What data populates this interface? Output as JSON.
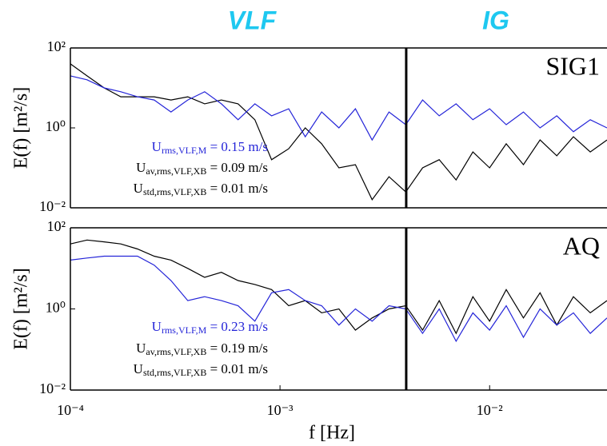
{
  "chart_data": [
    {
      "type": "line",
      "xscale": "log",
      "yscale": "log",
      "band_labels": [
        "VLF",
        "IG"
      ],
      "panel_label": "SIG1",
      "ylabel": "E(f) [m²/s]",
      "vline": 0.004,
      "xlim": [
        0.0001,
        0.0363
      ],
      "ylim": [
        0.01,
        100
      ],
      "yticks": [
        {
          "value": 0.01,
          "label": "10⁻²"
        },
        {
          "value": 1,
          "label": "10⁰"
        },
        {
          "value": 100,
          "label": "10²"
        }
      ],
      "annotations": [
        {
          "base": "U",
          "sub": "rms,VLF,M",
          "text": " = 0.15 m/s",
          "color": "#2424d8"
        },
        {
          "base": "U",
          "sub": "av,rms,VLF,XB",
          "text": " = 0.09 m/s",
          "color": "#000000"
        },
        {
          "base": "U",
          "sub": "std,rms,VLF,XB",
          "text": " = 0.01 m/s",
          "color": "#000000"
        }
      ],
      "x": [
        0.0001,
        0.00012,
        0.000145,
        0.000174,
        0.000209,
        0.000251,
        0.000302,
        0.000363,
        0.000437,
        0.000525,
        0.000631,
        0.000759,
        0.000912,
        0.0011,
        0.00132,
        0.00158,
        0.00191,
        0.00229,
        0.00275,
        0.00331,
        0.00398,
        0.00479,
        0.00575,
        0.00692,
        0.00832,
        0.01,
        0.012,
        0.0145,
        0.0174,
        0.0209,
        0.0251,
        0.0302,
        0.0363
      ],
      "series": [
        {
          "color": "#000000",
          "values": [
            40,
            20,
            10,
            6,
            6,
            6,
            5,
            6,
            4,
            5,
            4,
            1.6,
            0.16,
            0.3,
            1,
            0.4,
            0.1,
            0.12,
            0.016,
            0.06,
            0.025,
            0.1,
            0.16,
            0.05,
            0.25,
            0.1,
            0.4,
            0.12,
            0.5,
            0.2,
            0.6,
            0.25,
            0.5
          ]
        },
        {
          "color": "#2424d8",
          "values": [
            20,
            16,
            10,
            8,
            6,
            5,
            2.5,
            5,
            8,
            4,
            1.6,
            4,
            2,
            3,
            0.6,
            2.5,
            1,
            3,
            0.5,
            2.5,
            1.2,
            5,
            2,
            4,
            1.6,
            3,
            1.2,
            2.5,
            1,
            2,
            0.8,
            1.6,
            1
          ]
        }
      ]
    },
    {
      "type": "line",
      "xscale": "log",
      "yscale": "log",
      "panel_label": "AQ",
      "ylabel": "E(f) [m²/s]",
      "xlabel": "f [Hz]",
      "vline": 0.004,
      "xlim": [
        0.0001,
        0.0363
      ],
      "ylim": [
        0.01,
        100
      ],
      "xticks": [
        {
          "value": 0.0001,
          "label": "10⁻⁴"
        },
        {
          "value": 0.001,
          "label": "10⁻³"
        },
        {
          "value": 0.01,
          "label": "10⁻²"
        }
      ],
      "yticks": [
        {
          "value": 0.01,
          "label": "10⁻²"
        },
        {
          "value": 1,
          "label": "10⁰"
        },
        {
          "value": 100,
          "label": "10²"
        }
      ],
      "annotations": [
        {
          "base": "U",
          "sub": "rms,VLF,M",
          "text": " = 0.23 m/s",
          "color": "#2424d8"
        },
        {
          "base": "U",
          "sub": "av,rms,VLF,XB",
          "text": " = 0.19 m/s",
          "color": "#000000"
        },
        {
          "base": "U",
          "sub": "std,rms,VLF,XB",
          "text": " = 0.01 m/s",
          "color": "#000000"
        }
      ],
      "x": [
        0.0001,
        0.00012,
        0.000145,
        0.000174,
        0.000209,
        0.000251,
        0.000302,
        0.000363,
        0.000437,
        0.000525,
        0.000631,
        0.000759,
        0.000912,
        0.0011,
        0.00132,
        0.00158,
        0.00191,
        0.00229,
        0.00275,
        0.00331,
        0.00398,
        0.00479,
        0.00575,
        0.00692,
        0.00832,
        0.01,
        0.012,
        0.0145,
        0.0174,
        0.0209,
        0.0251,
        0.0302,
        0.0363
      ],
      "series": [
        {
          "color": "#000000",
          "values": [
            40,
            50,
            45,
            40,
            30,
            20,
            16,
            10,
            6,
            8,
            5,
            4,
            3,
            1.2,
            1.6,
            0.8,
            1,
            0.3,
            0.6,
            1,
            1.2,
            0.3,
            1.6,
            0.25,
            2,
            0.5,
            3,
            0.6,
            2.5,
            0.4,
            2,
            0.8,
            1.6
          ]
        },
        {
          "color": "#2424d8",
          "values": [
            16,
            18,
            20,
            20,
            20,
            12,
            5,
            1.6,
            2,
            1.6,
            1.2,
            0.5,
            2.5,
            3,
            1.6,
            1.2,
            0.4,
            1,
            0.5,
            1.2,
            1,
            0.25,
            1,
            0.16,
            0.8,
            0.3,
            1.2,
            0.2,
            1,
            0.4,
            0.8,
            0.25,
            0.6
          ]
        }
      ]
    }
  ]
}
